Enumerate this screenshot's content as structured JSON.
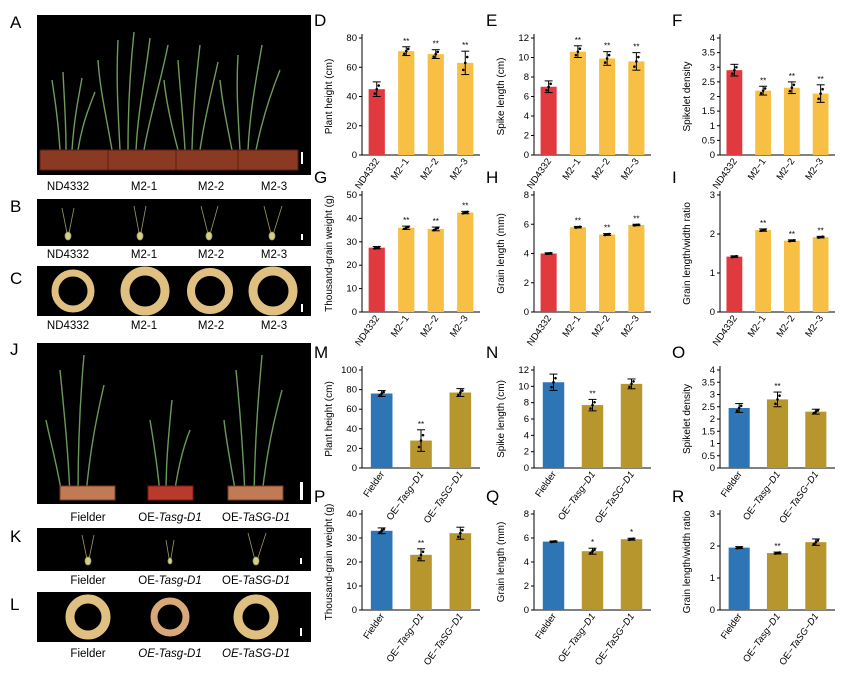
{
  "figure": {
    "top_photos": {
      "labels": [
        "A",
        "B",
        "C"
      ],
      "captions": [
        "ND4332",
        "M2-1",
        "M2-2",
        "M2-3"
      ]
    },
    "bottom_photos": {
      "labels": [
        "J",
        "K",
        "L"
      ],
      "captions": [
        {
          "prefix": "",
          "italic": "",
          "text": "Fielder"
        },
        {
          "prefix": "OE-",
          "italic": "Tasg-D1",
          "text": ""
        },
        {
          "prefix": "OE-",
          "italic": "TaSG-D1",
          "text": ""
        }
      ],
      "captions_L": [
        {
          "prefix": "",
          "italic": "",
          "text": "Fielder"
        },
        {
          "prefix": "",
          "italic": "OE-Tasg-D1",
          "text": ""
        },
        {
          "prefix": "",
          "italic": "OE-TaSG-D1",
          "text": ""
        }
      ]
    },
    "colors": {
      "red": "#e03a3e",
      "yellow": "#f7c045",
      "blue": "#2e75b6",
      "gold": "#b8962e"
    }
  },
  "chart_data": [
    {
      "id": "D",
      "type": "bar",
      "ylabel": "Plant height (cm)",
      "ylim": [
        0,
        80
      ],
      "yticks": [
        0,
        20,
        40,
        60,
        80
      ],
      "categories": [
        "ND4332",
        "M2−1",
        "M2−2",
        "M2−3"
      ],
      "values": [
        45,
        71,
        69,
        63
      ],
      "errors": [
        5,
        3,
        3,
        8
      ],
      "sig": [
        "",
        "**",
        "**",
        "**"
      ],
      "colors": [
        "#e03a3e",
        "#f7c045",
        "#f7c045",
        "#f7c045"
      ]
    },
    {
      "id": "E",
      "type": "bar",
      "ylabel": "Spike length (cm)",
      "ylim": [
        0,
        12
      ],
      "yticks": [
        0,
        2,
        4,
        6,
        8,
        10,
        12
      ],
      "categories": [
        "ND4332",
        "M2−1",
        "M2−2",
        "M2−3"
      ],
      "values": [
        7.0,
        10.6,
        9.9,
        9.6
      ],
      "errors": [
        0.6,
        0.6,
        0.7,
        0.9
      ],
      "sig": [
        "",
        "**",
        "**",
        "**"
      ],
      "colors": [
        "#e03a3e",
        "#f7c045",
        "#f7c045",
        "#f7c045"
      ]
    },
    {
      "id": "F",
      "type": "bar",
      "ylabel": "Spikelet density",
      "ylim": [
        0,
        4
      ],
      "yticks": [
        0,
        0.5,
        1,
        1.5,
        2,
        2.5,
        3,
        3.5,
        4
      ],
      "categories": [
        "ND4332",
        "M2−1",
        "M2−2",
        "M2−3"
      ],
      "values": [
        2.9,
        2.2,
        2.3,
        2.1
      ],
      "errors": [
        0.2,
        0.15,
        0.2,
        0.3
      ],
      "sig": [
        "",
        "**",
        "**",
        "**"
      ],
      "colors": [
        "#e03a3e",
        "#f7c045",
        "#f7c045",
        "#f7c045"
      ]
    },
    {
      "id": "G",
      "type": "bar",
      "ylabel": "Thousand-grain weight (g)",
      "ylim": [
        0,
        50
      ],
      "yticks": [
        0,
        10,
        20,
        30,
        40,
        50
      ],
      "categories": [
        "ND4332",
        "M2−1",
        "M2−2",
        "M2−3"
      ],
      "values": [
        27.5,
        36,
        35.5,
        42.5
      ],
      "errors": [
        0.5,
        0.7,
        0.8,
        0.5
      ],
      "sig": [
        "",
        "**",
        "**",
        "**"
      ],
      "colors": [
        "#e03a3e",
        "#f7c045",
        "#f7c045",
        "#f7c045"
      ]
    },
    {
      "id": "H",
      "type": "bar",
      "ylabel": "Grain length (mm)",
      "ylim": [
        0,
        8
      ],
      "yticks": [
        0,
        2,
        4,
        6,
        8
      ],
      "categories": [
        "ND4332",
        "M2−1",
        "M2−2",
        "M2−3"
      ],
      "values": [
        4.0,
        5.8,
        5.3,
        5.95
      ],
      "errors": [
        0.05,
        0.05,
        0.06,
        0.05
      ],
      "sig": [
        "",
        "**",
        "**",
        "**"
      ],
      "colors": [
        "#e03a3e",
        "#f7c045",
        "#f7c045",
        "#f7c045"
      ]
    },
    {
      "id": "I",
      "type": "bar",
      "ylabel": "Grain length/width ratio",
      "ylim": [
        0,
        3
      ],
      "yticks": [
        0,
        1,
        2,
        3
      ],
      "categories": [
        "ND4332",
        "M2−1",
        "M2−2",
        "M2−3"
      ],
      "values": [
        1.42,
        2.1,
        1.83,
        1.92
      ],
      "errors": [
        0.02,
        0.03,
        0.02,
        0.02
      ],
      "sig": [
        "",
        "**",
        "**",
        "**"
      ],
      "colors": [
        "#e03a3e",
        "#f7c045",
        "#f7c045",
        "#f7c045"
      ]
    },
    {
      "id": "M",
      "type": "bar",
      "ylabel": "Plant height (cm)",
      "ylim": [
        0,
        100
      ],
      "yticks": [
        0,
        20,
        40,
        60,
        80,
        100
      ],
      "categories": [
        "Fielder",
        "OE−Tasg−D1",
        "OE−TaSG−D1"
      ],
      "values": [
        76,
        28,
        77
      ],
      "errors": [
        3,
        11,
        4
      ],
      "sig": [
        "",
        "**",
        ""
      ],
      "colors": [
        "#2e75b6",
        "#b8962e",
        "#b8962e"
      ]
    },
    {
      "id": "N",
      "type": "bar",
      "ylabel": "Spike length (cm)",
      "ylim": [
        0,
        12
      ],
      "yticks": [
        0,
        2,
        4,
        6,
        8,
        10,
        12
      ],
      "categories": [
        "Fielder",
        "OE−Tasg−D1",
        "OE−TaSG−D1"
      ],
      "values": [
        10.5,
        7.7,
        10.3
      ],
      "errors": [
        1.0,
        0.7,
        0.6
      ],
      "sig": [
        "",
        "**",
        ""
      ],
      "colors": [
        "#2e75b6",
        "#b8962e",
        "#b8962e"
      ]
    },
    {
      "id": "O",
      "type": "bar",
      "ylabel": "Spikelet density",
      "ylim": [
        0,
        4
      ],
      "yticks": [
        0,
        0.5,
        1,
        1.5,
        2,
        2.5,
        3,
        3.5,
        4
      ],
      "categories": [
        "Fielder",
        "OE−Tasg−D1",
        "OE−TaSG−D1"
      ],
      "values": [
        2.45,
        2.8,
        2.3
      ],
      "errors": [
        0.18,
        0.3,
        0.1
      ],
      "sig": [
        "",
        "**",
        ""
      ],
      "colors": [
        "#2e75b6",
        "#b8962e",
        "#b8962e"
      ]
    },
    {
      "id": "P",
      "type": "bar",
      "ylabel": "Thousand-grain weight (g)",
      "ylim": [
        0,
        40
      ],
      "yticks": [
        0,
        10,
        20,
        30,
        40
      ],
      "categories": [
        "Fielder",
        "OE−Tasg−D1",
        "OE−TaSG−D1"
      ],
      "values": [
        33,
        23,
        32
      ],
      "errors": [
        1.2,
        2.5,
        2.5
      ],
      "sig": [
        "",
        "**",
        ""
      ],
      "colors": [
        "#2e75b6",
        "#b8962e",
        "#b8962e"
      ]
    },
    {
      "id": "Q",
      "type": "bar",
      "ylabel": "Grain length (mm)",
      "ylim": [
        0,
        8
      ],
      "yticks": [
        0,
        2,
        4,
        6,
        8
      ],
      "categories": [
        "Fielder",
        "OE−Tasg−D1",
        "OE−TaSG−D1"
      ],
      "values": [
        5.7,
        4.9,
        5.9
      ],
      "errors": [
        0.05,
        0.25,
        0.08
      ],
      "sig": [
        "",
        "*",
        "*"
      ],
      "colors": [
        "#2e75b6",
        "#b8962e",
        "#b8962e"
      ]
    },
    {
      "id": "R",
      "type": "bar",
      "ylabel": "Grain length/width ratio",
      "ylim": [
        0,
        3
      ],
      "yticks": [
        0,
        1,
        2,
        3
      ],
      "categories": [
        "Fielder",
        "OE−Tasg−D1",
        "OE−TaSG−D1"
      ],
      "values": [
        1.95,
        1.78,
        2.12
      ],
      "errors": [
        0.03,
        0.03,
        0.1
      ],
      "sig": [
        "",
        "**",
        ""
      ],
      "colors": [
        "#2e75b6",
        "#b8962e",
        "#b8962e"
      ]
    }
  ]
}
